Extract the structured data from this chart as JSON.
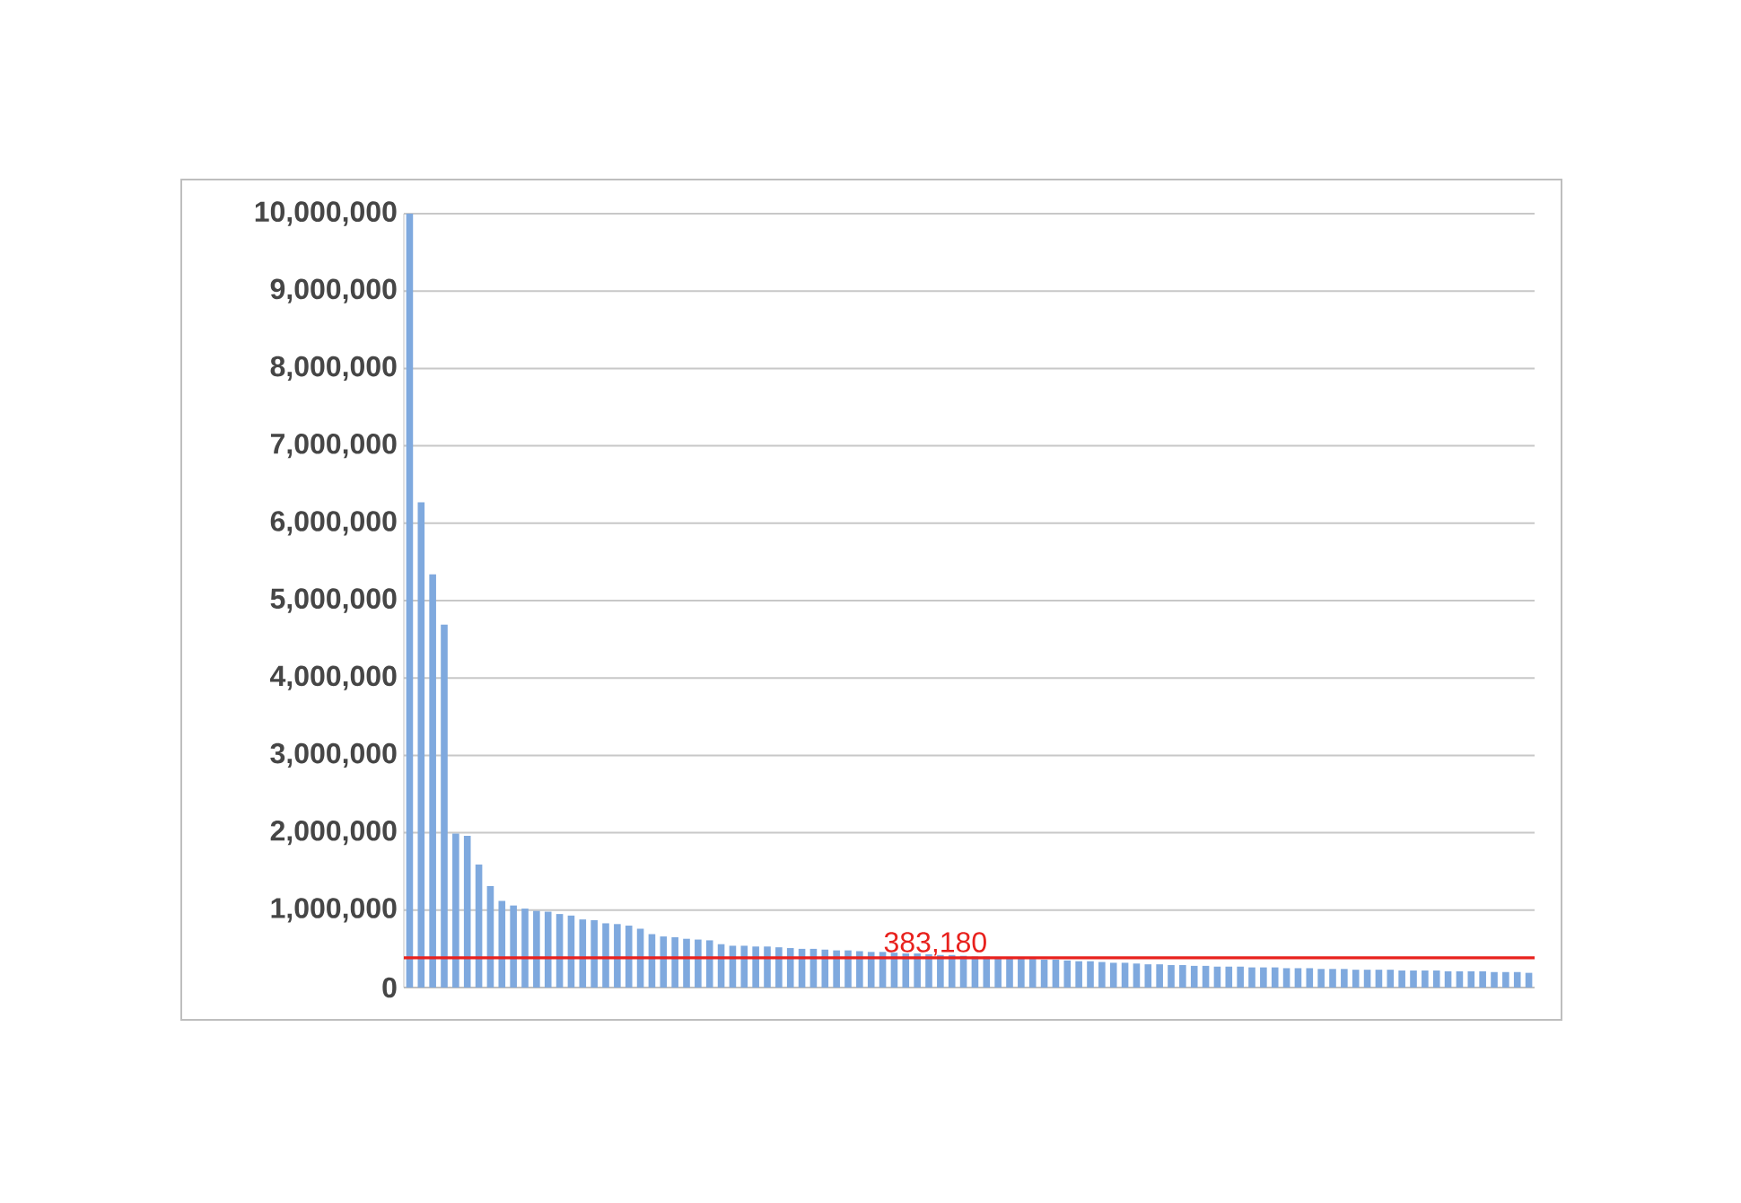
{
  "chart_data": {
    "type": "bar",
    "color": "#7fa9de",
    "categories": [
      null,
      null,
      null,
      null,
      null,
      null,
      null,
      null,
      null,
      null,
      null,
      null,
      null,
      null,
      null,
      null,
      null,
      null,
      null,
      null,
      null,
      null,
      null,
      null,
      null,
      null,
      null,
      null,
      null,
      null,
      null,
      null,
      null,
      null,
      null,
      null,
      null,
      null,
      null,
      null,
      null,
      null,
      null,
      null,
      null,
      null,
      null,
      null,
      null,
      null,
      null,
      null,
      null,
      null,
      null,
      null,
      null,
      null,
      null,
      null,
      null,
      null,
      null,
      null,
      null,
      null,
      null,
      null,
      null,
      null,
      null,
      null,
      null,
      null,
      null,
      null,
      null,
      null,
      null,
      null,
      null,
      null,
      null,
      null,
      null,
      null,
      null,
      null,
      null,
      null,
      null,
      null,
      null,
      null,
      null,
      null,
      null,
      null
    ],
    "values": [
      10000000,
      6270000,
      5340000,
      4690000,
      1990000,
      1960000,
      1590000,
      1310000,
      1120000,
      1060000,
      1020000,
      990000,
      980000,
      950000,
      930000,
      880000,
      870000,
      830000,
      820000,
      800000,
      760000,
      690000,
      660000,
      650000,
      630000,
      620000,
      610000,
      560000,
      540000,
      540000,
      530000,
      530000,
      520000,
      510000,
      500000,
      500000,
      490000,
      480000,
      480000,
      470000,
      460000,
      460000,
      450000,
      440000,
      440000,
      430000,
      420000,
      420000,
      410000,
      400000,
      400000,
      390000,
      380000,
      380000,
      370000,
      360000,
      360000,
      350000,
      340000,
      340000,
      330000,
      320000,
      320000,
      310000,
      300000,
      300000,
      290000,
      290000,
      280000,
      280000,
      270000,
      270000,
      270000,
      260000,
      260000,
      260000,
      250000,
      250000,
      250000,
      240000,
      240000,
      240000,
      230000,
      230000,
      230000,
      230000,
      220000,
      220000,
      220000,
      220000,
      210000,
      210000,
      210000,
      210000,
      200000,
      200000,
      200000,
      190000
    ],
    "ylim": [
      0,
      10000000
    ],
    "yticks": [
      {
        "value": 0,
        "label": "0"
      },
      {
        "value": 1000000,
        "label": "1,000,000"
      },
      {
        "value": 2000000,
        "label": "2,000,000"
      },
      {
        "value": 3000000,
        "label": "3,000,000"
      },
      {
        "value": 4000000,
        "label": "4,000,000"
      },
      {
        "value": 5000000,
        "label": "5,000,000"
      },
      {
        "value": 6000000,
        "label": "6,000,000"
      },
      {
        "value": 7000000,
        "label": "7,000,000"
      },
      {
        "value": 8000000,
        "label": "8,000,000"
      },
      {
        "value": 9000000,
        "label": "9,000,000"
      },
      {
        "value": 10000000,
        "label": "10,000,000"
      }
    ],
    "grid": "y",
    "tick_labels": "y",
    "ref_lines": [
      {
        "axis": "y",
        "value": 383180,
        "label": "383,180",
        "color": "#e8211d"
      }
    ]
  }
}
